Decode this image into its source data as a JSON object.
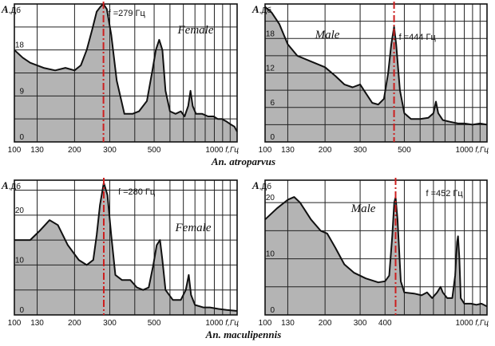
{
  "caption_top": "An. atroparvus",
  "caption_bottom": "An. maculipennis",
  "y_axis_symbol": "A",
  "y_axis_unit": ",Дб",
  "x_axis_unit": "f,Гц",
  "colors": {
    "fill": "#b4b4b4",
    "line": "#111111",
    "grid": "#222222",
    "marker": "#cc1f1f"
  },
  "chart_data": [
    {
      "type": "area",
      "group": "An. atroparvus",
      "sex_label": "Female",
      "marker_label": "f =279 Гц",
      "marker_freq": 279,
      "x_scale": "log",
      "xlim": [
        100,
        1300
      ],
      "ylim": [
        0,
        27
      ],
      "x_ticks": [
        100,
        130,
        200,
        300,
        500,
        1000
      ],
      "x_tick_labels": [
        "100",
        "130",
        "200",
        "300",
        "500",
        "1000"
      ],
      "x_grid": [
        100,
        130,
        200,
        300,
        400,
        500,
        600,
        700,
        800,
        900,
        1000,
        1100,
        1200
      ],
      "y_ticks": [
        0,
        9,
        18
      ],
      "y_tick_labels": [
        "0",
        "9",
        "18"
      ],
      "y_grid": [
        0,
        4.5,
        9,
        13.5,
        18,
        22.5
      ],
      "series": [
        {
          "points": [
            [
              100,
              18
            ],
            [
              110,
              16.5
            ],
            [
              120,
              15.5
            ],
            [
              140,
              14.5
            ],
            [
              160,
              14
            ],
            [
              180,
              14.5
            ],
            [
              200,
              14
            ],
            [
              215,
              15
            ],
            [
              230,
              18
            ],
            [
              245,
              22
            ],
            [
              258,
              25.5
            ],
            [
              270,
              26.5
            ],
            [
              279,
              27
            ],
            [
              290,
              26
            ],
            [
              305,
              21
            ],
            [
              325,
              12
            ],
            [
              355,
              5.5
            ],
            [
              390,
              5.5
            ],
            [
              420,
              6
            ],
            [
              460,
              8
            ],
            [
              490,
              14
            ],
            [
              510,
              18
            ],
            [
              530,
              20
            ],
            [
              550,
              18
            ],
            [
              570,
              10
            ],
            [
              600,
              6
            ],
            [
              640,
              5.5
            ],
            [
              680,
              6
            ],
            [
              710,
              5
            ],
            [
              740,
              7
            ],
            [
              760,
              10
            ],
            [
              780,
              7
            ],
            [
              810,
              5.5
            ],
            [
              870,
              5.5
            ],
            [
              930,
              5
            ],
            [
              990,
              5
            ],
            [
              1040,
              4.5
            ],
            [
              1090,
              4.5
            ],
            [
              1150,
              4
            ],
            [
              1200,
              3.5
            ],
            [
              1260,
              3
            ],
            [
              1300,
              2
            ]
          ]
        }
      ]
    },
    {
      "type": "area",
      "group": "An. atroparvus",
      "sex_label": "Male",
      "marker_label": "f =444 Гц",
      "marker_freq": 444,
      "x_scale": "log",
      "xlim": [
        100,
        1300
      ],
      "ylim": [
        0,
        24
      ],
      "x_ticks": [
        100,
        130,
        200,
        300,
        500,
        1000
      ],
      "x_tick_labels": [
        "100",
        "130",
        "200",
        "300",
        "500",
        "1000"
      ],
      "x_grid": [
        100,
        130,
        200,
        300,
        400,
        500,
        600,
        700,
        800,
        900,
        1000,
        1100,
        1200
      ],
      "y_ticks": [
        0,
        6,
        12,
        18
      ],
      "y_tick_labels": [
        "0",
        "6",
        "12",
        "18"
      ],
      "y_grid": [
        0,
        3,
        6,
        9,
        12,
        15,
        18,
        21
      ],
      "series": [
        {
          "points": [
            [
              100,
              23.5
            ],
            [
              108,
              22.5
            ],
            [
              118,
              20.5
            ],
            [
              130,
              17
            ],
            [
              145,
              15
            ],
            [
              170,
              14
            ],
            [
              200,
              13
            ],
            [
              225,
              11.5
            ],
            [
              250,
              10
            ],
            [
              275,
              9.5
            ],
            [
              300,
              10
            ],
            [
              320,
              8.5
            ],
            [
              345,
              6.8
            ],
            [
              370,
              6.5
            ],
            [
              395,
              7.5
            ],
            [
              415,
              12
            ],
            [
              430,
              17
            ],
            [
              444,
              20
            ],
            [
              455,
              17
            ],
            [
              475,
              9
            ],
            [
              500,
              5
            ],
            [
              540,
              4
            ],
            [
              600,
              4
            ],
            [
              660,
              4.2
            ],
            [
              700,
              5
            ],
            [
              720,
              7
            ],
            [
              740,
              5
            ],
            [
              780,
              3.8
            ],
            [
              850,
              3.5
            ],
            [
              930,
              3.2
            ],
            [
              1000,
              3.2
            ],
            [
              1100,
              3
            ],
            [
              1200,
              3.2
            ],
            [
              1300,
              3
            ]
          ]
        }
      ]
    },
    {
      "type": "area",
      "group": "An. maculipennis",
      "sex_label": "Female",
      "marker_label": "f =280 Гц",
      "marker_freq": 280,
      "x_scale": "log",
      "xlim": [
        100,
        1300
      ],
      "ylim": [
        0,
        27
      ],
      "x_ticks": [
        100,
        130,
        200,
        300,
        500,
        1000
      ],
      "x_tick_labels": [
        "100",
        "130",
        "200",
        "300",
        "500",
        "1000"
      ],
      "x_grid": [
        100,
        130,
        200,
        300,
        400,
        500,
        600,
        700,
        800,
        900,
        1000,
        1100,
        1200
      ],
      "y_ticks": [
        0,
        10,
        20
      ],
      "y_tick_labels": [
        "0",
        "10",
        "20"
      ],
      "y_grid": [
        0,
        5,
        10,
        15,
        20,
        25
      ],
      "series": [
        {
          "points": [
            [
              100,
              15
            ],
            [
              120,
              15
            ],
            [
              135,
              17
            ],
            [
              150,
              19
            ],
            [
              165,
              18
            ],
            [
              185,
              14
            ],
            [
              210,
              11
            ],
            [
              230,
              10
            ],
            [
              248,
              11
            ],
            [
              258,
              16
            ],
            [
              268,
              22
            ],
            [
              280,
              26.5
            ],
            [
              292,
              24
            ],
            [
              305,
              16
            ],
            [
              320,
              8
            ],
            [
              345,
              7
            ],
            [
              380,
              7
            ],
            [
              410,
              5.5
            ],
            [
              440,
              5
            ],
            [
              470,
              5.5
            ],
            [
              495,
              10
            ],
            [
              515,
              14
            ],
            [
              535,
              15
            ],
            [
              550,
              11
            ],
            [
              570,
              5
            ],
            [
              620,
              3
            ],
            [
              680,
              3
            ],
            [
              720,
              5
            ],
            [
              745,
              8
            ],
            [
              765,
              4
            ],
            [
              800,
              2
            ],
            [
              880,
              1.5
            ],
            [
              950,
              1.5
            ],
            [
              1050,
              1.2
            ],
            [
              1150,
              1
            ],
            [
              1300,
              0.8
            ]
          ]
        }
      ]
    },
    {
      "type": "area",
      "group": "An. maculipennis",
      "sex_label": "Male",
      "marker_label": "f =452 Гц",
      "marker_freq": 452,
      "x_scale": "log",
      "xlim": [
        100,
        1300
      ],
      "ylim": [
        0,
        24
      ],
      "x_ticks": [
        100,
        130,
        200,
        300,
        400,
        1000
      ],
      "x_tick_labels": [
        "100",
        "130",
        "200",
        "300",
        "400",
        "1000"
      ],
      "x_grid": [
        100,
        130,
        200,
        300,
        400,
        500,
        600,
        700,
        800,
        900,
        1000,
        1100,
        1200
      ],
      "y_ticks": [
        0,
        10,
        20
      ],
      "y_tick_labels": [
        "0",
        "10",
        "20"
      ],
      "y_grid": [
        0,
        5,
        10,
        15,
        20
      ],
      "series": [
        {
          "points": [
            [
              100,
              17
            ],
            [
              115,
              19
            ],
            [
              130,
              20.5
            ],
            [
              140,
              21
            ],
            [
              150,
              20
            ],
            [
              170,
              17
            ],
            [
              190,
              15
            ],
            [
              205,
              14.5
            ],
            [
              225,
              12
            ],
            [
              250,
              9
            ],
            [
              280,
              7.5
            ],
            [
              320,
              6.5
            ],
            [
              370,
              5.8
            ],
            [
              400,
              6
            ],
            [
              420,
              7
            ],
            [
              435,
              14
            ],
            [
              445,
              20
            ],
            [
              452,
              21
            ],
            [
              462,
              17
            ],
            [
              480,
              6
            ],
            [
              500,
              4
            ],
            [
              560,
              3.8
            ],
            [
              610,
              3.5
            ],
            [
              650,
              4
            ],
            [
              690,
              3
            ],
            [
              730,
              4
            ],
            [
              760,
              5
            ],
            [
              780,
              4
            ],
            [
              820,
              3
            ],
            [
              870,
              3
            ],
            [
              900,
              7
            ],
            [
              920,
              13
            ],
            [
              930,
              14
            ],
            [
              945,
              10
            ],
            [
              960,
              3
            ],
            [
              1000,
              2
            ],
            [
              1080,
              2
            ],
            [
              1150,
              1.8
            ],
            [
              1220,
              2
            ],
            [
              1300,
              1.5
            ]
          ]
        }
      ]
    }
  ]
}
